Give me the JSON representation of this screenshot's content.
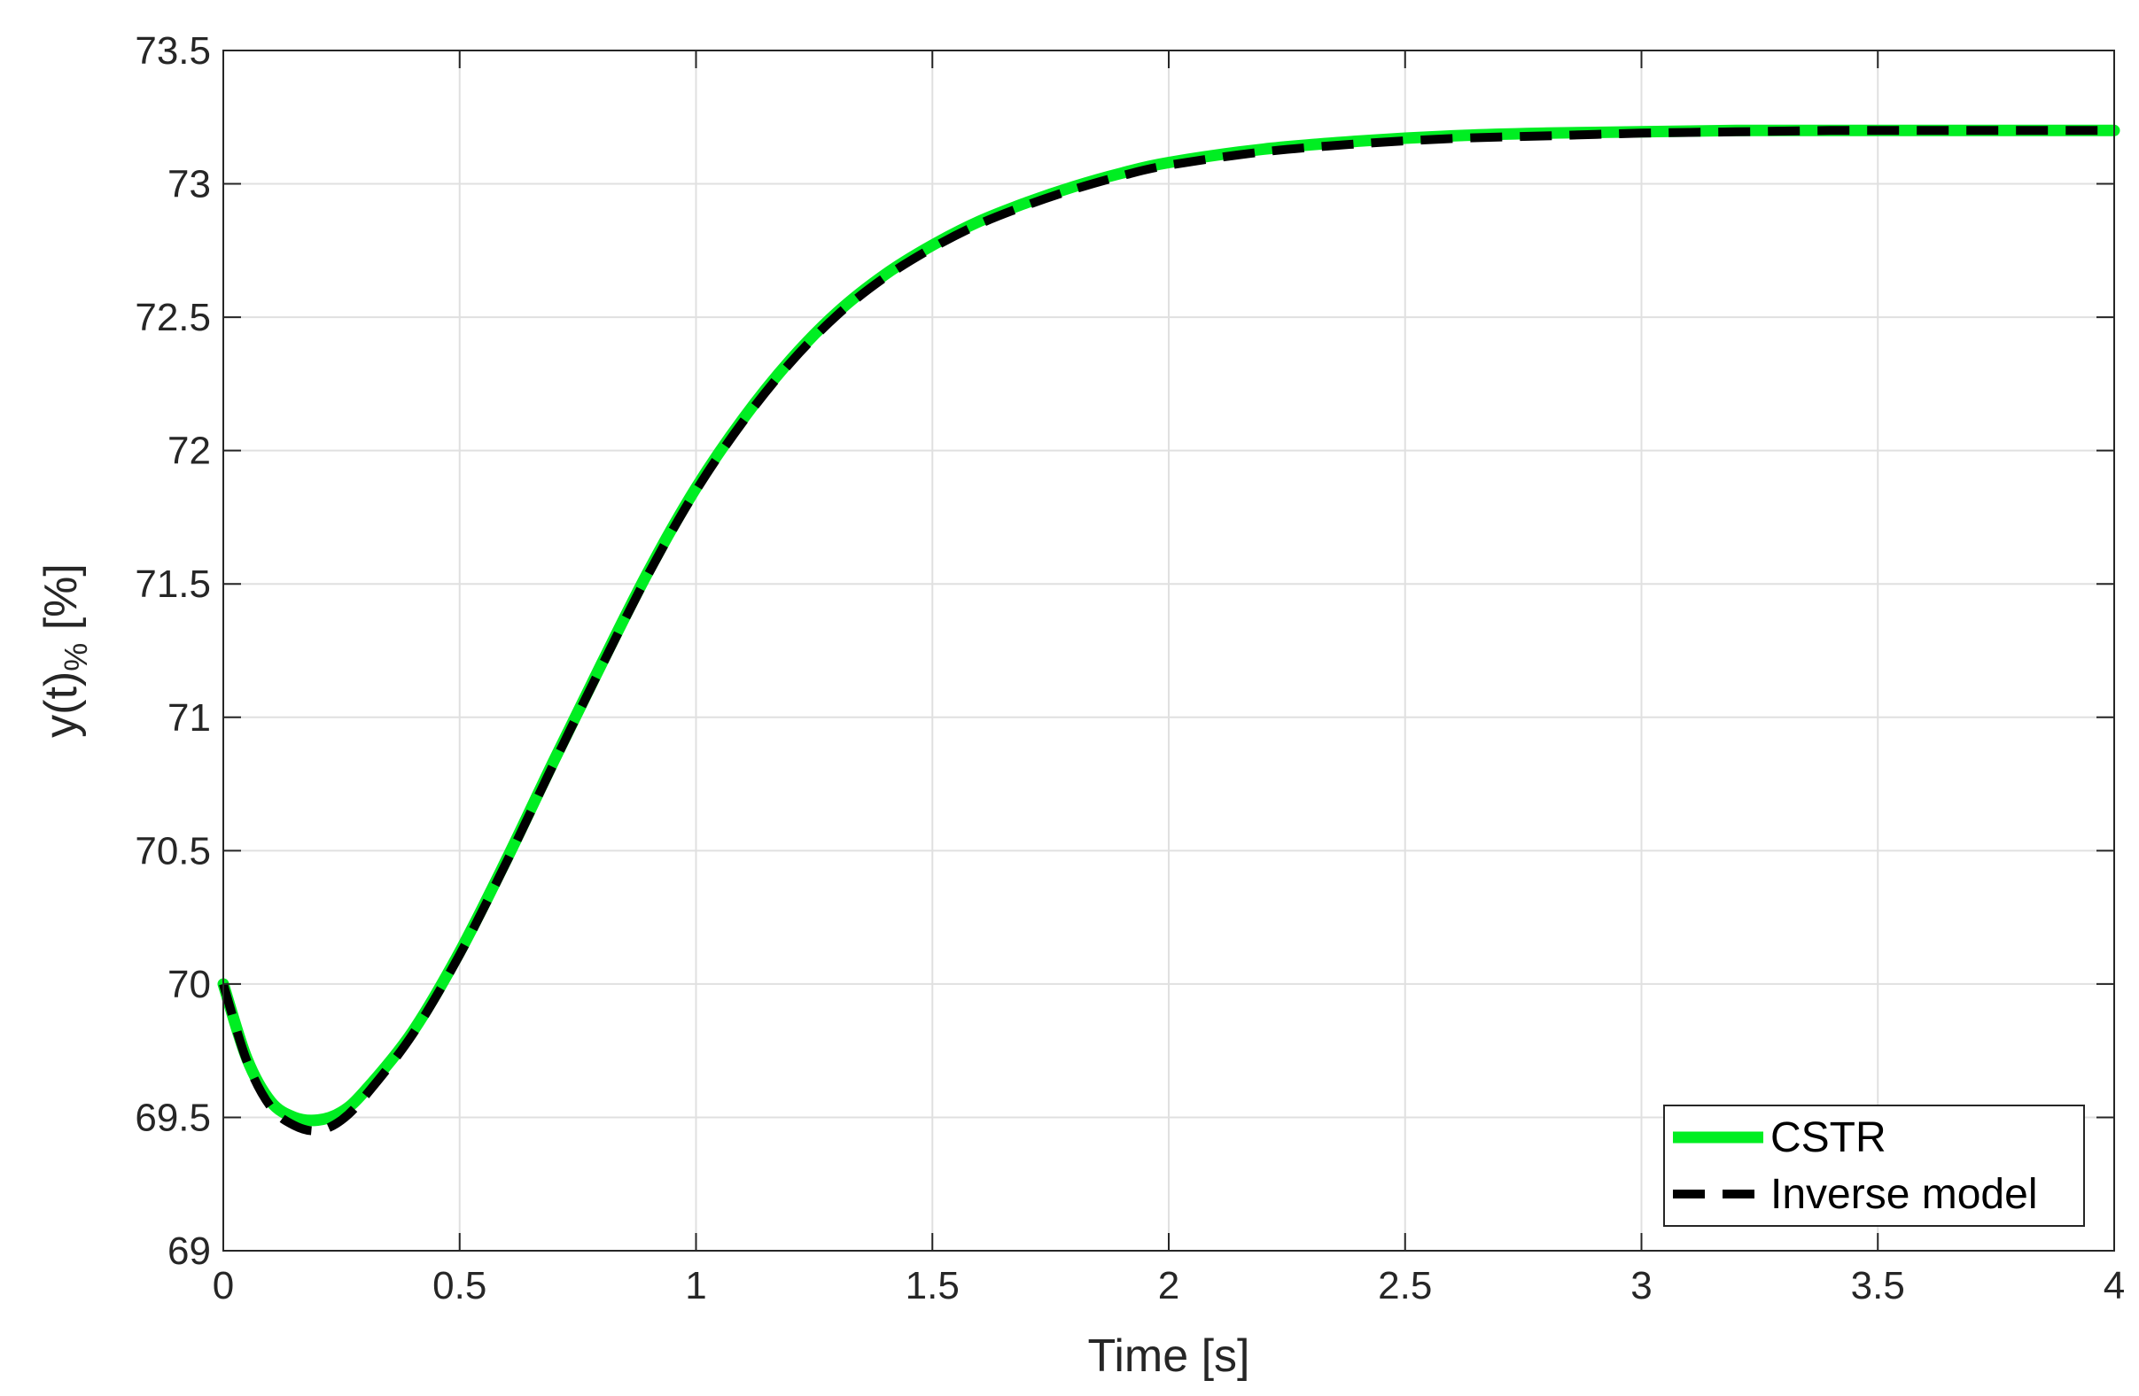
{
  "chart_data": {
    "type": "line",
    "title": "",
    "xlabel": "Time [s]",
    "ylabel_main": "y(t)",
    "ylabel_sub": "%",
    "ylabel_unit": " [%]",
    "xlim": [
      0,
      4
    ],
    "ylim": [
      69,
      73.5
    ],
    "xticks": [
      0,
      0.5,
      1,
      1.5,
      2,
      2.5,
      3,
      3.5,
      4
    ],
    "xtick_labels": [
      "0",
      "0.5",
      "1",
      "1.5",
      "2",
      "2.5",
      "3",
      "3.5",
      "4"
    ],
    "yticks": [
      69,
      69.5,
      70,
      70.5,
      71,
      71.5,
      72,
      72.5,
      73,
      73.5
    ],
    "ytick_labels": [
      "69",
      "69.5",
      "70",
      "70.5",
      "71",
      "71.5",
      "72",
      "72.5",
      "73",
      "73.5"
    ],
    "grid": true,
    "legend_position": "bottom-right",
    "series": [
      {
        "name": "CSTR",
        "color": "#00ee22",
        "style": "solid",
        "x": [
          0,
          0.05,
          0.1,
          0.15,
          0.2,
          0.25,
          0.3,
          0.4,
          0.5,
          0.6,
          0.7,
          0.8,
          0.9,
          1.0,
          1.1,
          1.2,
          1.3,
          1.4,
          1.5,
          1.6,
          1.7,
          1.8,
          1.9,
          2.0,
          2.2,
          2.4,
          2.6,
          2.8,
          3.0,
          3.2,
          3.4,
          3.6,
          3.8,
          4.0
        ],
        "y": [
          70.0,
          69.72,
          69.56,
          69.5,
          69.49,
          69.52,
          69.6,
          69.82,
          70.12,
          70.47,
          70.84,
          71.2,
          71.55,
          71.86,
          72.12,
          72.34,
          72.52,
          72.66,
          72.77,
          72.86,
          72.93,
          72.99,
          73.04,
          73.08,
          73.13,
          73.16,
          73.18,
          73.19,
          73.195,
          73.2,
          73.2,
          73.2,
          73.2,
          73.2
        ]
      },
      {
        "name": "Inverse model",
        "color": "#000000",
        "style": "dashed",
        "x": [
          0,
          0.05,
          0.1,
          0.15,
          0.2,
          0.25,
          0.3,
          0.4,
          0.5,
          0.6,
          0.7,
          0.8,
          0.9,
          1.0,
          1.1,
          1.2,
          1.3,
          1.4,
          1.5,
          1.6,
          1.7,
          1.8,
          1.9,
          2.0,
          2.2,
          2.4,
          2.6,
          2.8,
          3.0,
          3.2,
          3.4,
          3.6,
          3.8,
          4.0
        ],
        "y": [
          70.0,
          69.71,
          69.54,
          69.47,
          69.45,
          69.49,
          69.58,
          69.81,
          70.11,
          70.46,
          70.83,
          71.19,
          71.54,
          71.85,
          72.11,
          72.33,
          72.51,
          72.65,
          72.76,
          72.85,
          72.92,
          72.98,
          73.03,
          73.07,
          73.12,
          73.15,
          73.17,
          73.18,
          73.19,
          73.195,
          73.2,
          73.2,
          73.2,
          73.2
        ]
      }
    ]
  }
}
